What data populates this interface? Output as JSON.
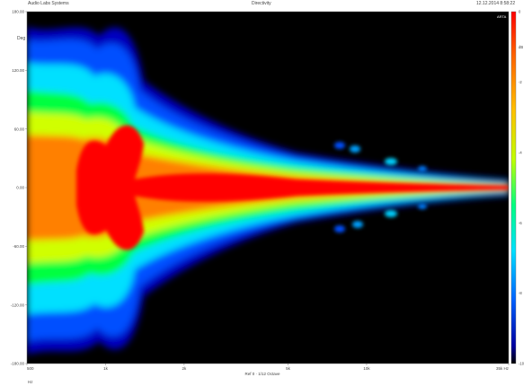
{
  "header": {
    "company": "Audio Labs Systems",
    "chart_title": "Directivity",
    "timestamp": "12.12.2014 8:58:22"
  },
  "chart_data": {
    "type": "heatmap",
    "title": "Directivity",
    "xlabel": "Ref 0 · 1/12 Octave",
    "ylabel": "Deg",
    "x_unit_label": "Hz",
    "log_x": true,
    "xlim": [
      500,
      35000
    ],
    "ylim": [
      -180,
      180
    ],
    "colorbar_range": [
      -10,
      0
    ],
    "colorbar_unit": "dB",
    "x_ticks": [
      {
        "value": 500,
        "label": "500"
      },
      {
        "value": 1000,
        "label": "1k"
      },
      {
        "value": 2000,
        "label": "2k"
      },
      {
        "value": 5000,
        "label": "5k"
      },
      {
        "value": 10000,
        "label": "10k"
      },
      {
        "value": 35000,
        "label": "35k Hz"
      }
    ],
    "y_ticks": [
      {
        "value": 180,
        "label": "180.00"
      },
      {
        "value": 120,
        "label": "120.00"
      },
      {
        "value": 60,
        "label": "60.00"
      },
      {
        "value": 0,
        "label": "0.00"
      },
      {
        "value": -60,
        "label": "-60.00"
      },
      {
        "value": -120,
        "label": "-120.00"
      },
      {
        "value": -180,
        "label": "-180.00"
      }
    ],
    "colorbar_ticks": [
      {
        "value": 0,
        "label": "0"
      },
      {
        "value": -1,
        "label": "dB"
      },
      {
        "value": -2,
        "label": "-2"
      },
      {
        "value": -4,
        "label": "-4"
      },
      {
        "value": -6,
        "label": "-6"
      },
      {
        "value": -8,
        "label": "-8"
      },
      {
        "value": -10,
        "label": "-10"
      }
    ],
    "colormap": [
      "#000080",
      "#0000ff",
      "#00a0ff",
      "#00ffff",
      "#00ff80",
      "#00ff00",
      "#a0ff00",
      "#ffff00",
      "#ff8000",
      "#ff0000"
    ],
    "beamwidth_profile": [
      {
        "freq": 500,
        "half_angle_deg": 180
      },
      {
        "freq": 700,
        "half_angle_deg": 170
      },
      {
        "freq": 1000,
        "half_angle_deg": 120
      },
      {
        "freq": 1400,
        "half_angle_deg": 80
      },
      {
        "freq": 2000,
        "half_angle_deg": 30
      },
      {
        "freq": 3000,
        "half_angle_deg": 22
      },
      {
        "freq": 5000,
        "half_angle_deg": 15
      },
      {
        "freq": 10000,
        "half_angle_deg": 10
      },
      {
        "freq": 20000,
        "half_angle_deg": 6
      },
      {
        "freq": 35000,
        "half_angle_deg": 4
      }
    ]
  }
}
